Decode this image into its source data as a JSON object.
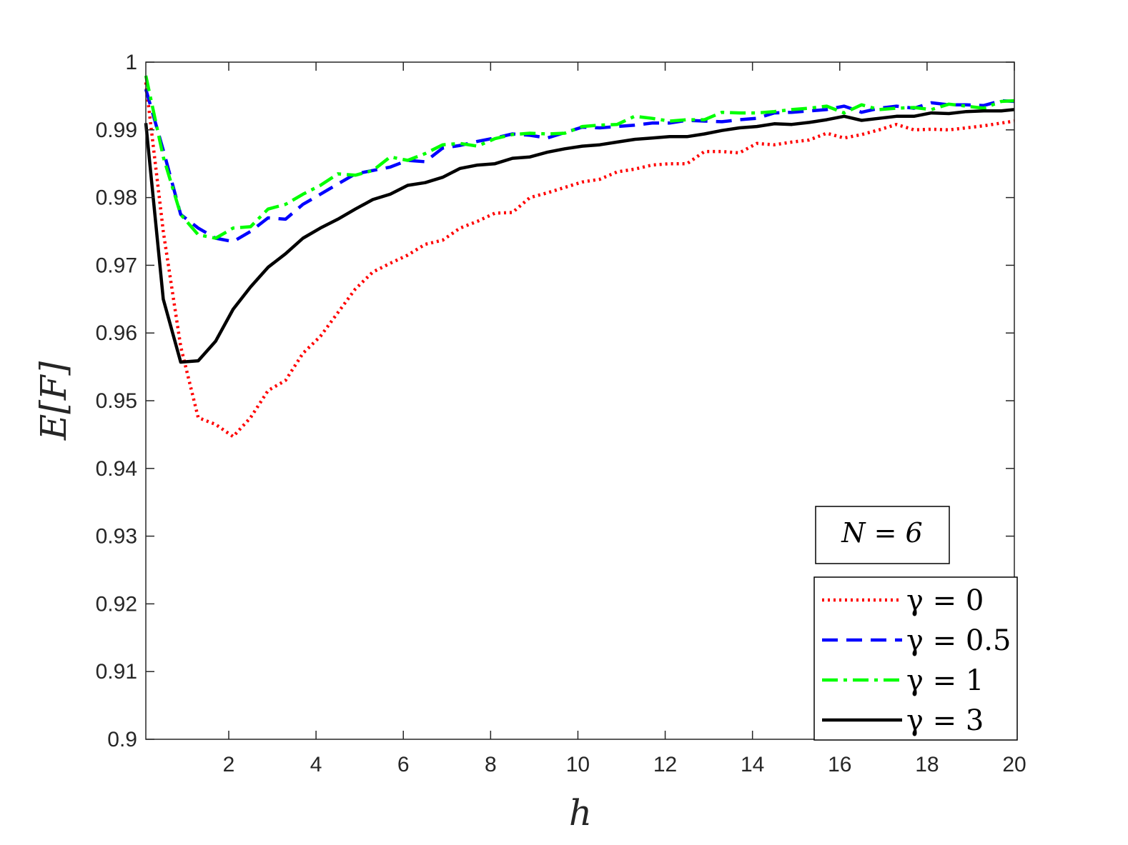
{
  "chart_data": {
    "type": "line",
    "xlabel": "h",
    "ylabel": "E[F]",
    "xlim": [
      0.1,
      20
    ],
    "ylim": [
      0.9,
      1
    ],
    "xticks": [
      2,
      4,
      6,
      8,
      10,
      12,
      14,
      16,
      18,
      20
    ],
    "yticks": [
      0.9,
      0.91,
      0.92,
      0.93,
      0.94,
      0.95,
      0.96,
      0.97,
      0.98,
      0.99,
      1
    ],
    "xtick_labels": [
      "2",
      "4",
      "6",
      "8",
      "10",
      "12",
      "14",
      "16",
      "18",
      "20"
    ],
    "ytick_labels": [
      "0.9",
      "0.91",
      "0.92",
      "0.93",
      "0.94",
      "0.95",
      "0.96",
      "0.97",
      "0.98",
      "0.99",
      "1"
    ],
    "grid": false,
    "legend_placement": "bottom-right",
    "annotation": {
      "text": "N = 6"
    },
    "series": [
      {
        "name": "γ = 0",
        "color": "#ff0000",
        "dash": "dotted",
        "x": [
          0.1,
          0.5,
          0.9,
          1.3,
          1.7,
          2.1,
          2.5,
          2.9,
          3.3,
          3.7,
          4.1,
          4.5,
          4.9,
          5.3,
          5.7,
          6.1,
          6.5,
          6.9,
          7.3,
          7.7,
          8.1,
          8.5,
          8.9,
          9.3,
          9.7,
          10.1,
          10.5,
          10.9,
          11.3,
          11.7,
          12.1,
          12.5,
          12.9,
          13.3,
          13.7,
          14.1,
          14.5,
          14.9,
          15.3,
          15.7,
          16.1,
          16.5,
          16.9,
          17.3,
          17.7,
          18.1,
          18.5,
          18.9,
          19.3,
          19.7,
          20
        ],
        "y": [
          0.997,
          0.975,
          0.958,
          0.9475,
          0.9465,
          0.9447,
          0.9475,
          0.9515,
          0.953,
          0.957,
          0.9595,
          0.963,
          0.9665,
          0.969,
          0.9703,
          0.9715,
          0.9731,
          0.9737,
          0.9755,
          0.9765,
          0.9777,
          0.9778,
          0.98,
          0.9807,
          0.9815,
          0.9823,
          0.9827,
          0.9838,
          0.9842,
          0.9848,
          0.985,
          0.985,
          0.9868,
          0.9868,
          0.9866,
          0.988,
          0.9878,
          0.9882,
          0.9885,
          0.9895,
          0.9888,
          0.9893,
          0.99,
          0.9908,
          0.99,
          0.9901,
          0.99,
          0.9903,
          0.9906,
          0.991,
          0.9913
        ]
      },
      {
        "name": "γ = 0.5",
        "color": "#0000ff",
        "dash": "dashed",
        "x": [
          0.1,
          0.5,
          0.9,
          1.3,
          1.7,
          2.1,
          2.5,
          2.9,
          3.3,
          3.7,
          4.1,
          4.5,
          4.9,
          5.3,
          5.7,
          6.1,
          6.5,
          6.9,
          7.3,
          7.7,
          8.1,
          8.5,
          8.9,
          9.3,
          9.7,
          10.1,
          10.5,
          10.9,
          11.3,
          11.7,
          12.1,
          12.5,
          12.9,
          13.3,
          13.7,
          14.1,
          14.5,
          14.9,
          15.3,
          15.7,
          16.1,
          16.5,
          16.9,
          17.3,
          17.7,
          18.1,
          18.5,
          18.9,
          19.3,
          19.7,
          20
        ],
        "y": [
          0.996,
          0.987,
          0.9775,
          0.9755,
          0.974,
          0.9735,
          0.975,
          0.977,
          0.9768,
          0.979,
          0.9805,
          0.982,
          0.9835,
          0.984,
          0.9845,
          0.9855,
          0.9853,
          0.9873,
          0.9877,
          0.9883,
          0.9888,
          0.9894,
          0.9892,
          0.9888,
          0.9896,
          0.9904,
          0.9903,
          0.9905,
          0.9907,
          0.991,
          0.991,
          0.9914,
          0.9913,
          0.9912,
          0.9915,
          0.9917,
          0.9925,
          0.9926,
          0.9928,
          0.993,
          0.9935,
          0.9926,
          0.9932,
          0.9935,
          0.9932,
          0.994,
          0.9937,
          0.9937,
          0.9936,
          0.9943,
          0.9942
        ]
      },
      {
        "name": "γ = 1",
        "color": "#00ff00",
        "dash": "dashdot",
        "x": [
          0.1,
          0.5,
          0.9,
          1.3,
          1.7,
          2.1,
          2.5,
          2.9,
          3.3,
          3.7,
          4.1,
          4.5,
          4.9,
          5.3,
          5.7,
          6.1,
          6.5,
          6.9,
          7.3,
          7.7,
          8.1,
          8.5,
          8.9,
          9.3,
          9.7,
          10.1,
          10.5,
          10.9,
          11.3,
          11.7,
          12.1,
          12.5,
          12.9,
          13.3,
          13.7,
          14.1,
          14.5,
          14.9,
          15.3,
          15.7,
          16.1,
          16.5,
          16.9,
          17.3,
          17.7,
          18.1,
          18.5,
          18.9,
          19.3,
          19.7,
          20
        ],
        "y": [
          0.998,
          0.986,
          0.9775,
          0.9745,
          0.974,
          0.9755,
          0.9757,
          0.9783,
          0.979,
          0.9805,
          0.9818,
          0.9835,
          0.9833,
          0.984,
          0.986,
          0.9855,
          0.9865,
          0.9878,
          0.988,
          0.9876,
          0.9887,
          0.9893,
          0.9895,
          0.9894,
          0.9895,
          0.9905,
          0.9907,
          0.9908,
          0.992,
          0.9917,
          0.9913,
          0.9915,
          0.9915,
          0.9926,
          0.9925,
          0.9925,
          0.9927,
          0.993,
          0.9932,
          0.9935,
          0.9925,
          0.9937,
          0.993,
          0.9932,
          0.9933,
          0.993,
          0.9938,
          0.9935,
          0.9932,
          0.9942,
          0.9943
        ]
      },
      {
        "name": "γ = 3",
        "color": "#000000",
        "dash": "solid",
        "x": [
          0.1,
          0.5,
          0.9,
          1.3,
          1.7,
          2.1,
          2.5,
          2.9,
          3.3,
          3.7,
          4.1,
          4.5,
          4.9,
          5.3,
          5.7,
          6.1,
          6.5,
          6.9,
          7.3,
          7.7,
          8.1,
          8.5,
          8.9,
          9.3,
          9.7,
          10.1,
          10.5,
          10.9,
          11.3,
          11.7,
          12.1,
          12.5,
          12.9,
          13.3,
          13.7,
          14.1,
          14.5,
          14.9,
          15.3,
          15.7,
          16.1,
          16.5,
          16.9,
          17.3,
          17.7,
          18.1,
          18.5,
          18.9,
          19.3,
          19.7,
          20
        ],
        "y": [
          0.991,
          0.965,
          0.9557,
          0.9559,
          0.9588,
          0.9635,
          0.9668,
          0.9697,
          0.9717,
          0.974,
          0.9755,
          0.9768,
          0.9783,
          0.9797,
          0.9805,
          0.9818,
          0.9822,
          0.983,
          0.9843,
          0.9848,
          0.985,
          0.9858,
          0.986,
          0.9867,
          0.9872,
          0.9876,
          0.9878,
          0.9882,
          0.9886,
          0.9888,
          0.989,
          0.989,
          0.9894,
          0.9899,
          0.9903,
          0.9905,
          0.9909,
          0.9908,
          0.9911,
          0.9915,
          0.992,
          0.9914,
          0.9917,
          0.992,
          0.992,
          0.9925,
          0.9924,
          0.9927,
          0.9928,
          0.9928,
          0.993
        ]
      }
    ]
  }
}
